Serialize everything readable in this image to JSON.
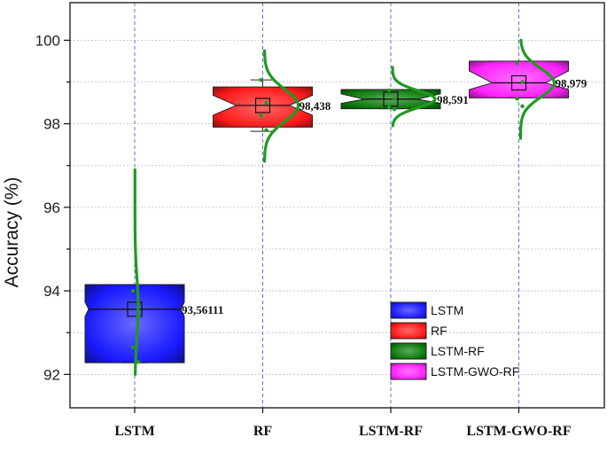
{
  "chart_data": {
    "type": "box",
    "ylabel": "Accuracy (%)",
    "xlabel": "",
    "ylim": [
      91.2,
      100.9
    ],
    "yticks": [
      92,
      94,
      96,
      98,
      100
    ],
    "grid": true,
    "legend_position": "bottom-right",
    "categories": [
      "LSTM",
      "RF",
      "LSTM-RF",
      "LSTM-GWO-RF"
    ],
    "series": [
      {
        "name": "LSTM",
        "color": "#1a1aff",
        "q1": 92.28,
        "median": 93.56,
        "q3": 94.15,
        "mean": 93.56111,
        "whisker_low": 92.28,
        "whisker_high": 94.15,
        "label": "93,56111",
        "points": [
          94.0,
          93.4,
          92.65,
          92.3
        ],
        "dist": {
          "low": 92.0,
          "high": 96.9,
          "peak": 93.6,
          "max_offset": 4,
          "min_offset": 0.3
        }
      },
      {
        "name": "RF",
        "color": "#ff1a1a",
        "q1": 97.92,
        "median": 98.44,
        "q3": 98.88,
        "mean": 98.438,
        "whisker_low": 97.82,
        "whisker_high": 99.05,
        "label": "98,438",
        "points": [
          99.05,
          98.5,
          98.2,
          97.85
        ],
        "dist": {
          "low": 97.1,
          "high": 99.75,
          "peak": 98.44,
          "max_offset": 40,
          "min_offset": 2
        }
      },
      {
        "name": "LSTM-RF",
        "color": "#0a7a0a",
        "q1": 98.36,
        "median": 98.59,
        "q3": 98.82,
        "mean": 98.591,
        "whisker_low": 98.36,
        "whisker_high": 98.82,
        "label": "98,591",
        "points": [
          98.8,
          98.6,
          98.4,
          98.35
        ],
        "dist": {
          "low": 97.95,
          "high": 99.35,
          "peak": 98.59,
          "max_offset": 50,
          "min_offset": 2
        }
      },
      {
        "name": "LSTM-GWO-RF",
        "color": "#ff22ff",
        "q1": 98.62,
        "median": 98.98,
        "q3": 99.5,
        "mean": 98.979,
        "whisker_low": 98.62,
        "whisker_high": 99.5,
        "label": "98,979",
        "points": [
          99.45,
          99.0,
          98.6,
          98.42
        ],
        "dist": {
          "low": 97.65,
          "high": 100.0,
          "peak": 98.98,
          "max_offset": 40,
          "min_offset": 2
        }
      }
    ]
  }
}
